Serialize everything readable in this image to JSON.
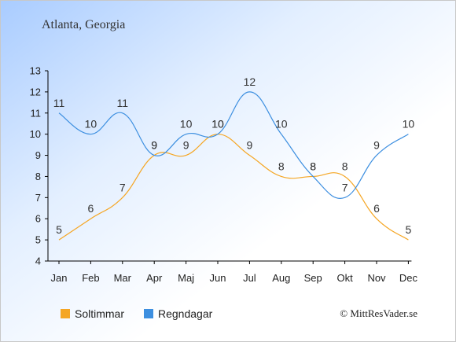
{
  "title": "Atlanta, Georgia",
  "copyright": "© MittResVader.se",
  "chart_data": {
    "type": "line",
    "categories": [
      "Jan",
      "Feb",
      "Mar",
      "Apr",
      "Maj",
      "Jun",
      "Jul",
      "Aug",
      "Sep",
      "Okt",
      "Nov",
      "Dec"
    ],
    "series": [
      {
        "name": "Soltimmar",
        "values": [
          5,
          6,
          7,
          9,
          9,
          10,
          9,
          8,
          8,
          8,
          6,
          5
        ],
        "color": "#f5a623"
      },
      {
        "name": "Regndagar",
        "values": [
          11,
          10,
          11,
          9,
          10,
          10,
          12,
          10,
          8,
          7,
          9,
          10
        ],
        "color": "#3d8fe0"
      }
    ],
    "ylim": [
      4,
      13
    ],
    "yticks": [
      4,
      5,
      6,
      7,
      8,
      9,
      10,
      11,
      12,
      13
    ],
    "grid": false,
    "legend_placement": "bottom-left"
  }
}
